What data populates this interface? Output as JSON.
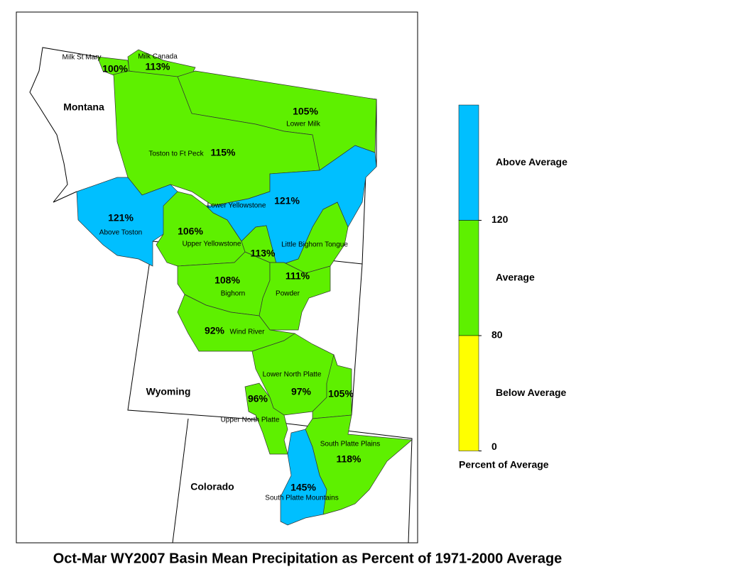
{
  "title": "Oct-Mar WY2007 Basin Mean Precipitation as Percent of 1971-2000 Average",
  "states": [
    "Montana",
    "Wyoming",
    "Colorado"
  ],
  "basins": [
    {
      "name": "Milk St Mary",
      "percent": {
        "value": 100,
        "label": "100%"
      }
    },
    {
      "name": "Milk Canada",
      "percent": {
        "value": 113,
        "label": "113%"
      }
    },
    {
      "name": "Lower Milk",
      "percent": {
        "value": 105,
        "label": "105%"
      }
    },
    {
      "name": "Toston to Ft Peck",
      "percent": {
        "value": 115,
        "label": "115%"
      }
    },
    {
      "name": "Above Toston",
      "percent": {
        "value": 121,
        "label": "121%"
      }
    },
    {
      "name": "Lower Yellowstone",
      "percent": {
        "value": 121,
        "label": "121%"
      }
    },
    {
      "name": "Upper Yellowstone",
      "percent": {
        "value": 106,
        "label": "106%"
      }
    },
    {
      "name": "Little Bighorn Tongue",
      "percent": {
        "value": 113,
        "label": "113%"
      }
    },
    {
      "name": "Bighorn",
      "percent": {
        "value": 108,
        "label": "108%"
      }
    },
    {
      "name": "Powder",
      "percent": {
        "value": 111,
        "label": "111%"
      }
    },
    {
      "name": "Wind River",
      "percent": {
        "value": 92,
        "label": "92%"
      }
    },
    {
      "name": "Lower North Platte",
      "percent": {
        "value": 97,
        "label": "97%"
      }
    },
    {
      "percent": {
        "value": 105,
        "label": "105%"
      }
    },
    {
      "name": "Upper North Platte",
      "percent": {
        "value": 96,
        "label": "96%"
      }
    },
    {
      "name": "South Platte Plains",
      "percent": {
        "value": 118,
        "label": "118%"
      }
    },
    {
      "name": "South Platte Mountains",
      "percent": {
        "value": 145,
        "label": "145%"
      }
    }
  ],
  "legend": {
    "title": "Percent of Average",
    "classes": [
      {
        "label": "Above Average",
        "color": "#00bfff"
      },
      {
        "label": "Average",
        "color": "#5ef000"
      },
      {
        "label": "Below Average",
        "color": "#ffff00"
      }
    ],
    "breaks": [
      120,
      80,
      0
    ]
  }
}
